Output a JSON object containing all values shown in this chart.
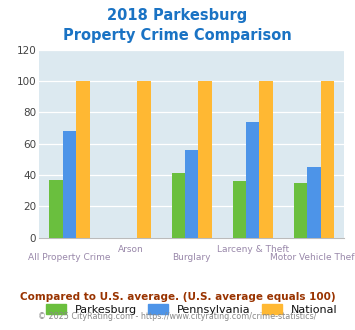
{
  "title_line1": "2018 Parkesburg",
  "title_line2": "Property Crime Comparison",
  "categories": [
    "All Property Crime",
    "Arson",
    "Burglary",
    "Larceny & Theft",
    "Motor Vehicle Theft"
  ],
  "cat_label_row1": [
    "",
    "Arson",
    "",
    "Larceny & Theft",
    ""
  ],
  "cat_label_row2": [
    "All Property Crime",
    "",
    "Burglary",
    "",
    "Motor Vehicle Theft"
  ],
  "series": {
    "Parkesburg": [
      37,
      0,
      41,
      36,
      35
    ],
    "Pennsylvania": [
      68,
      0,
      56,
      74,
      45
    ],
    "National": [
      100,
      100,
      100,
      100,
      100
    ]
  },
  "colors": {
    "Parkesburg": "#6abf3e",
    "Pennsylvania": "#4d94e8",
    "National": "#ffb833"
  },
  "ylim": [
    0,
    120
  ],
  "yticks": [
    0,
    20,
    40,
    60,
    80,
    100,
    120
  ],
  "plot_bg": "#dce9f0",
  "fig_bg": "#ffffff",
  "title_color": "#1a73c4",
  "xlabel_color": "#9988aa",
  "legend_text_color": "#111111",
  "footer_text": "Compared to U.S. average. (U.S. average equals 100)",
  "footer_color": "#993300",
  "credit_text": "© 2025 CityRating.com - https://www.cityrating.com/crime-statistics/",
  "credit_color": "#888888"
}
